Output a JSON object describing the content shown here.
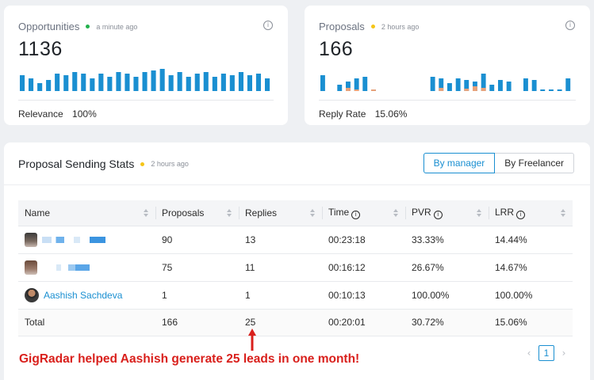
{
  "opportunities": {
    "title": "Opportunities",
    "status_color": "#22b14c",
    "updated": "a minute ago",
    "value": "1136",
    "metric_label": "Relevance",
    "metric_value": "100%"
  },
  "proposals": {
    "title": "Proposals",
    "status_color": "#f5c518",
    "updated": "2 hours ago",
    "value": "166",
    "metric_label": "Reply Rate",
    "metric_value": "15.06%"
  },
  "stats": {
    "title": "Proposal Sending Stats",
    "status_color": "#f5c518",
    "updated": "2 hours ago",
    "toggle": {
      "by_manager": "By manager",
      "by_freelancer": "By Freelancer"
    },
    "columns": {
      "name": "Name",
      "proposals": "Proposals",
      "replies": "Replies",
      "time": "Time",
      "pvr": "PVR",
      "lrr": "LRR"
    },
    "rows": [
      {
        "name": "",
        "proposals": "90",
        "replies": "13",
        "time": "00:23:18",
        "pvr": "33.33%",
        "lrr": "14.44%"
      },
      {
        "name": "",
        "proposals": "75",
        "replies": "11",
        "time": "00:16:12",
        "pvr": "26.67%",
        "lrr": "14.67%"
      },
      {
        "name": "Aashish Sachdeva",
        "proposals": "1",
        "replies": "1",
        "time": "00:10:13",
        "pvr": "100.00%",
        "lrr": "100.00%"
      }
    ],
    "total": {
      "label": "Total",
      "proposals": "166",
      "replies": "25",
      "time": "00:20:01",
      "pvr": "30.72%",
      "lrr": "15.06%"
    }
  },
  "annotation": "GigRadar helped Aashish generate 25 leads in one month!",
  "pagination": {
    "current": "1"
  },
  "icons": {
    "info": "info-icon",
    "sort": "sort-icon",
    "prev": "chevron-left-icon",
    "next": "chevron-right-icon"
  },
  "colors": {
    "accent": "#1a8fd1",
    "bar": "#1a8fd1",
    "bar_secondary": "#e8a27a",
    "annotation": "#d9201c"
  }
}
